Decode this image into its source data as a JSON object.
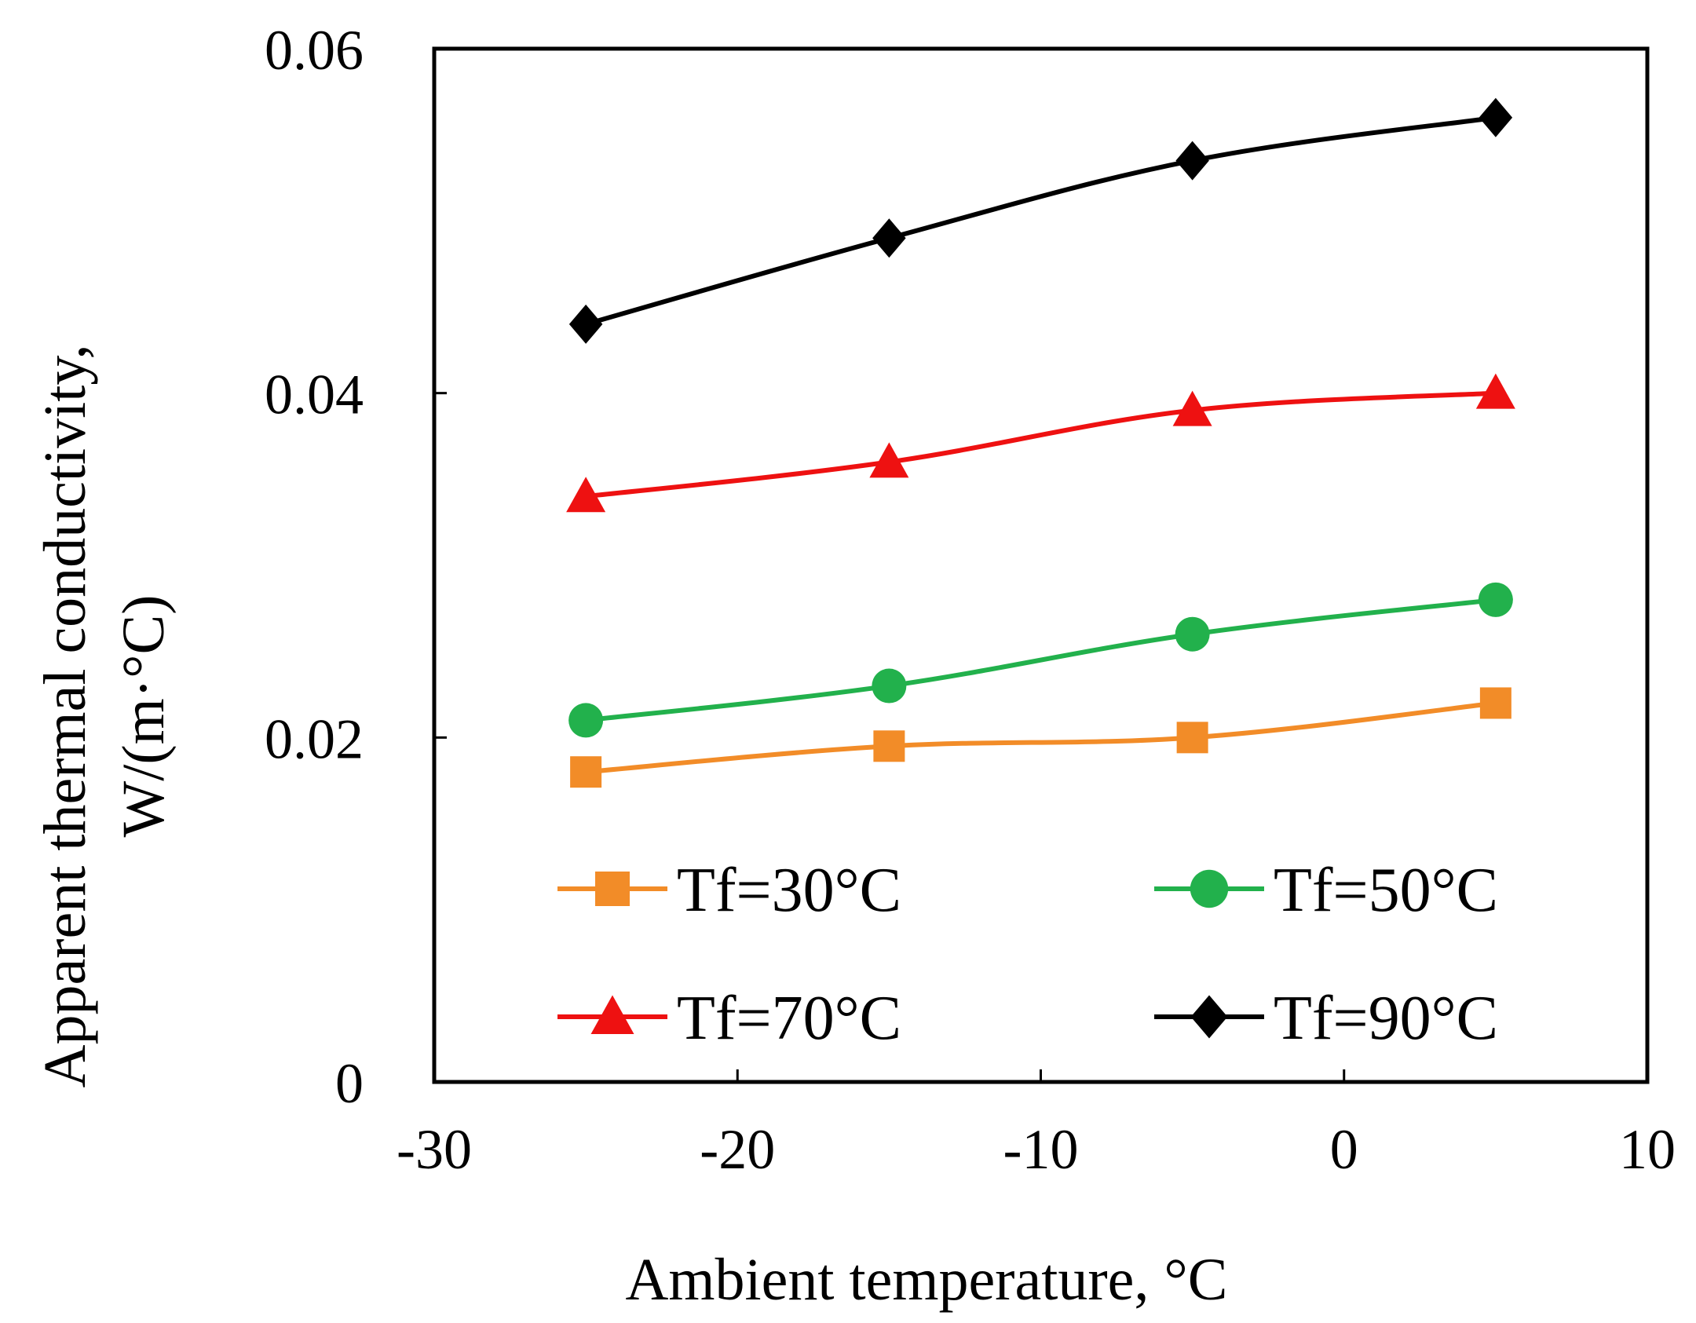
{
  "chart_data": {
    "type": "line",
    "title": "",
    "xlabel": "Ambient temperature, °C",
    "ylabel_line1": "Apparent  thermal  conductivity,",
    "ylabel_line2": "W/(m·°C)",
    "xlim": [
      -30,
      10
    ],
    "ylim": [
      0,
      0.06
    ],
    "xticks": [
      -30,
      -20,
      -10,
      0,
      10
    ],
    "xtick_labels": [
      "-30",
      "-20",
      "-10",
      "0",
      "10"
    ],
    "yticks": [
      0,
      0.02,
      0.04,
      0.06
    ],
    "ytick_labels": [
      "0",
      "0.02",
      "0.04",
      "0.06"
    ],
    "grid": false,
    "legend_position": "bottom inside, two columns",
    "x": [
      -25,
      -15,
      -5,
      5
    ],
    "series": [
      {
        "name": "Tf=30°C",
        "values": [
          0.018,
          0.0195,
          0.02,
          0.022
        ],
        "color": "#f28c28",
        "marker": "square"
      },
      {
        "name": "Tf=50°C",
        "values": [
          0.021,
          0.023,
          0.026,
          0.028
        ],
        "color": "#22b14c",
        "marker": "circle"
      },
      {
        "name": "Tf=70°C",
        "values": [
          0.034,
          0.036,
          0.039,
          0.04
        ],
        "color": "#ee1111",
        "marker": "triangle"
      },
      {
        "name": "Tf=90°C",
        "values": [
          0.044,
          0.049,
          0.0535,
          0.056
        ],
        "color": "#000000",
        "marker": "diamond"
      }
    ]
  }
}
